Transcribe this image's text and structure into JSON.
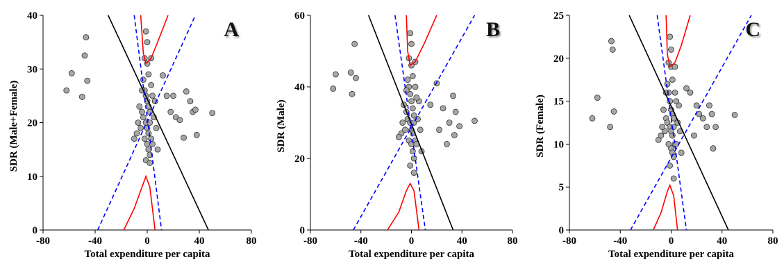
{
  "chart_data": [
    {
      "type": "scatter",
      "label": "A",
      "xlabel": "Total expenditure per capita",
      "ylabel": "SDR (Male+Female)",
      "xlim": [
        -80,
        80
      ],
      "ylim": [
        0,
        40
      ],
      "xticks": [
        -80,
        -40,
        0,
        40,
        80
      ],
      "yticks": [
        0,
        10,
        20,
        30,
        40
      ],
      "points": {
        "color": "#a6a6a6",
        "x": [
          -3,
          -2,
          -1,
          0,
          1,
          2,
          -4,
          -3,
          -1,
          0,
          1,
          2,
          3,
          -2,
          0,
          1,
          2,
          -1,
          4,
          -5,
          -6,
          -8,
          -10,
          5,
          6,
          3,
          1,
          0,
          -2,
          -1,
          3,
          0,
          4,
          -4,
          7,
          8,
          -7,
          2,
          -62,
          -58,
          -50,
          -48,
          -47,
          -46,
          12,
          15,
          20,
          22,
          25,
          28,
          30,
          33,
          35,
          38,
          37,
          50,
          18
        ],
        "y": [
          28,
          26,
          25,
          24,
          23,
          22,
          22,
          21,
          20,
          19,
          18,
          20,
          17,
          17,
          16,
          15,
          14,
          13,
          16,
          19,
          23,
          18,
          17,
          21,
          24,
          27,
          29,
          31,
          32,
          37,
          32,
          35,
          25,
          26,
          19,
          15,
          20,
          12.5,
          26,
          29.2,
          24.8,
          32.5,
          35.9,
          27.8,
          28.8,
          25,
          25,
          21,
          20.5,
          17.2,
          25.8,
          24,
          22,
          17.7,
          22.4,
          21.8,
          22
        ]
      },
      "lines": [
        {
          "color": "#000000",
          "dash": false,
          "x": [
            -30,
            47
          ],
          "y": [
            40,
            0
          ]
        },
        {
          "color": "#0000ff",
          "dash": true,
          "x": [
            -38,
            37
          ],
          "y": [
            0,
            40
          ]
        },
        {
          "color": "#0000ff",
          "dash": true,
          "x": [
            -10,
            11
          ],
          "y": [
            40,
            0
          ]
        },
        {
          "color": "#ff0000",
          "dash": false,
          "x": [
            -5,
            -3,
            -1,
            3,
            8,
            16
          ],
          "y": [
            40,
            33,
            31,
            32,
            35,
            40
          ]
        },
        {
          "color": "#ff0000",
          "dash": false,
          "x": [
            -18,
            -10,
            -4,
            -1,
            2,
            6
          ],
          "y": [
            0,
            4,
            8,
            10,
            8,
            0
          ]
        }
      ]
    },
    {
      "type": "scatter",
      "label": "B",
      "xlabel": "Total expenditure per capita",
      "ylabel": "SDR (Male)",
      "xlim": [
        -80,
        80
      ],
      "ylim": [
        0,
        60
      ],
      "xticks": [
        -80,
        -40,
        0,
        40,
        80
      ],
      "yticks": [
        0,
        20,
        40,
        60
      ],
      "points": {
        "color": "#a6a6a6",
        "x": [
          -3,
          -2,
          -1,
          0,
          1,
          2,
          -4,
          -3,
          -1,
          0,
          1,
          2,
          3,
          -2,
          0,
          1,
          2,
          -1,
          4,
          -5,
          -6,
          -8,
          -10,
          5,
          6,
          3,
          1,
          0,
          -2,
          -1,
          3,
          0,
          4,
          -4,
          7,
          8,
          -7,
          2,
          -62,
          -60,
          -48,
          -47,
          -45,
          -44,
          20,
          25,
          30,
          33,
          35,
          38,
          50,
          22,
          28,
          15,
          34
        ],
        "y": [
          42,
          40,
          38,
          36,
          34,
          32,
          33,
          31,
          30,
          28,
          27,
          30,
          25,
          25,
          24,
          22,
          20,
          18,
          24,
          28,
          35,
          27,
          26,
          31,
          36,
          40,
          43,
          46,
          48,
          55,
          47,
          52,
          37,
          39,
          28,
          22,
          30,
          16,
          39.5,
          43.5,
          44,
          38,
          52,
          42.5,
          41,
          34,
          30,
          37.5,
          33,
          29,
          30.5,
          28,
          24,
          35,
          26.5
        ]
      },
      "lines": [
        {
          "color": "#000000",
          "dash": false,
          "x": [
            -34,
            33
          ],
          "y": [
            60,
            0
          ]
        },
        {
          "color": "#0000ff",
          "dash": true,
          "x": [
            -46,
            50
          ],
          "y": [
            0,
            60
          ]
        },
        {
          "color": "#0000ff",
          "dash": true,
          "x": [
            -13,
            11
          ],
          "y": [
            60,
            0
          ]
        },
        {
          "color": "#ff0000",
          "dash": false,
          "x": [
            -4,
            -3,
            -1,
            3,
            10,
            20
          ],
          "y": [
            60,
            50,
            46,
            47,
            52,
            60
          ]
        },
        {
          "color": "#ff0000",
          "dash": false,
          "x": [
            -19,
            -10,
            -4,
            -1,
            2,
            6
          ],
          "y": [
            0,
            5,
            11,
            13,
            11,
            0
          ]
        }
      ]
    },
    {
      "type": "scatter",
      "label": "C",
      "xlabel": "Total expenditure per capita",
      "ylabel": "SDR (Female)",
      "xlim": [
        -80,
        80
      ],
      "ylim": [
        0,
        25
      ],
      "xticks": [
        -80,
        -40,
        0,
        40,
        80
      ],
      "yticks": [
        0,
        5,
        10,
        15,
        20,
        25
      ],
      "points": {
        "color": "#a6a6a6",
        "x": [
          -3,
          -2,
          -1,
          0,
          1,
          2,
          -4,
          -3,
          -1,
          0,
          1,
          2,
          3,
          -2,
          0,
          1,
          2,
          -1,
          4,
          -5,
          -6,
          -8,
          -10,
          5,
          6,
          3,
          1,
          0,
          -2,
          -1,
          3,
          0,
          4,
          -4,
          7,
          8,
          -7,
          2,
          -62,
          -58,
          -48,
          -47,
          -46,
          -45,
          15,
          20,
          22,
          25,
          28,
          30,
          32,
          33,
          35,
          50,
          18,
          12
        ],
        "y": [
          17,
          16,
          15,
          14,
          13.5,
          13,
          13,
          12.5,
          12,
          11.5,
          11,
          12,
          10,
          10,
          9.5,
          9,
          8.5,
          7.5,
          10,
          11.5,
          14,
          11,
          10.5,
          12.5,
          14.5,
          16,
          17.5,
          19,
          19.5,
          22.5,
          19,
          21,
          15,
          16,
          11.5,
          9,
          12,
          6,
          13,
          15.4,
          12,
          22,
          21,
          13.8,
          16,
          14.5,
          13.5,
          13,
          12,
          14.5,
          13.5,
          9.5,
          12,
          13.4,
          11,
          16.5
        ]
      },
      "lines": [
        {
          "color": "#000000",
          "dash": false,
          "x": [
            -33,
            45
          ],
          "y": [
            25,
            0
          ]
        },
        {
          "color": "#0000ff",
          "dash": true,
          "x": [
            -32,
            63
          ],
          "y": [
            0,
            25
          ]
        },
        {
          "color": "#0000ff",
          "dash": true,
          "x": [
            -11,
            12
          ],
          "y": [
            25,
            0
          ]
        },
        {
          "color": "#ff0000",
          "dash": false,
          "x": [
            -4,
            -3,
            -1,
            3,
            8,
            15
          ],
          "y": [
            25,
            20.5,
            19,
            19.5,
            21.5,
            25
          ]
        },
        {
          "color": "#ff0000",
          "dash": false,
          "x": [
            -14,
            -8,
            -3,
            -1,
            2,
            5
          ],
          "y": [
            0,
            2,
            4.5,
            5.2,
            4,
            0
          ]
        }
      ]
    }
  ]
}
